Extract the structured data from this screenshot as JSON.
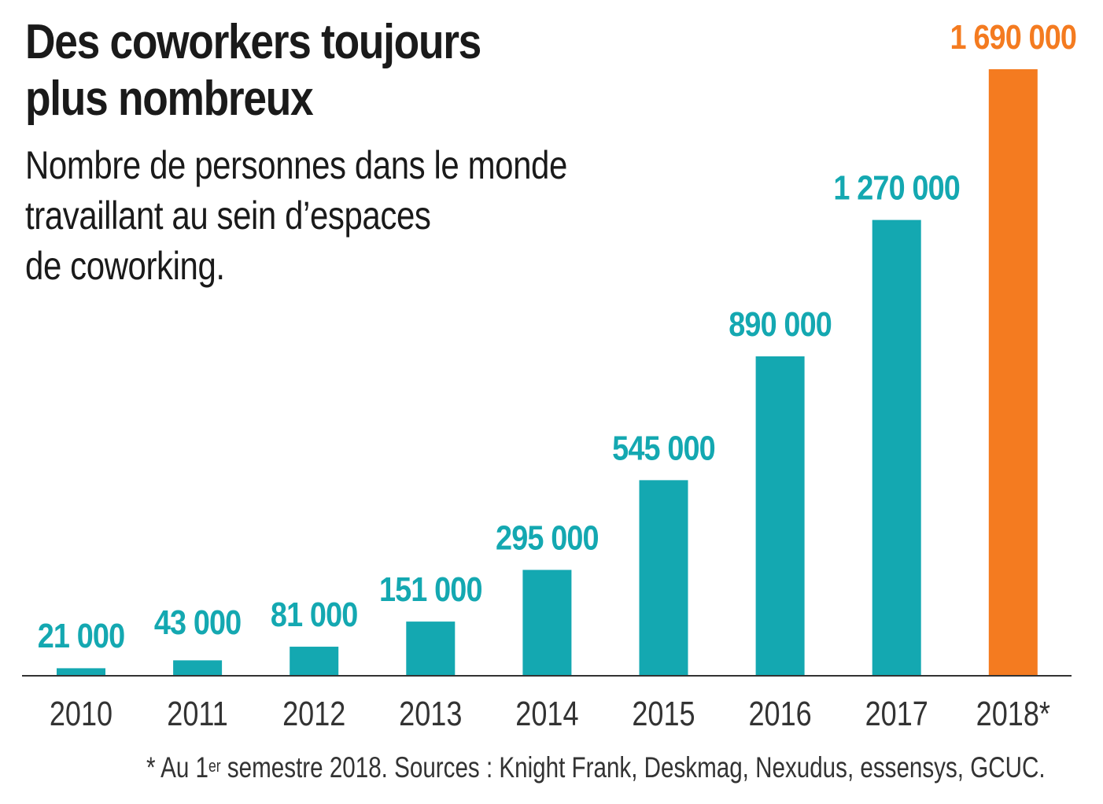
{
  "chart_data": {
    "type": "bar",
    "title": "Des coworkers toujours plus nombreux",
    "subtitle": "Nombre de personnes dans le monde\ntravaillant au sein d’espaces\nde coworking.",
    "categories": [
      "2010",
      "2011",
      "2012",
      "2013",
      "2014",
      "2015",
      "2016",
      "2017",
      "2018*"
    ],
    "values": [
      21000,
      43000,
      81000,
      151000,
      295000,
      545000,
      890000,
      1270000,
      1690000
    ],
    "value_labels": [
      "21 000",
      "43 000",
      "81 000",
      "151 000",
      "295 000",
      "545 000",
      "890 000",
      "1 270 000",
      "1 690 000"
    ],
    "xlabel": "",
    "ylabel": "",
    "ylim": [
      0,
      1690000
    ],
    "grid": false,
    "legend": "none",
    "colors": {
      "default": "#14a8b1",
      "highlight": "#f47b20",
      "axis": "#333333",
      "text": "#1a1a1a"
    },
    "highlight_index": 8
  },
  "footnote": {
    "prefix": "* Au 1",
    "sup": "er",
    "suffix": " semestre 2018. Sources : Knight Frank, Deskmag, Nexudus, essensys, GCUC."
  }
}
